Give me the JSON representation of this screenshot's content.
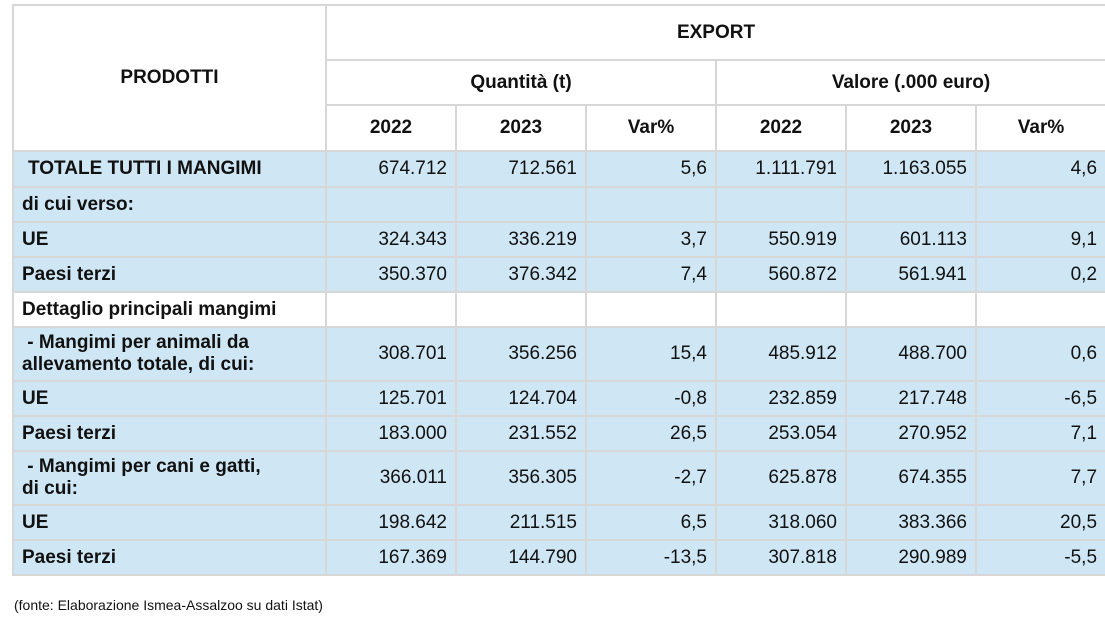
{
  "header": {
    "prodotti": "PRODOTTI",
    "export": "EXPORT",
    "quantita": "Quantità (t)",
    "valore": "Valore (.000 euro)",
    "years": [
      "2022",
      "2023",
      "Var%",
      "2022",
      "2023",
      "Var%"
    ]
  },
  "rows": [
    {
      "label": "TOTALE TUTTI I MANGIMI",
      "values": [
        "674.712",
        "712.561",
        "5,6",
        "1.111.791",
        "1.163.055",
        "4,6"
      ]
    },
    {
      "label": "di cui verso:",
      "values": [
        "",
        "",
        "",
        "",
        "",
        ""
      ]
    },
    {
      "label": "UE",
      "values": [
        "324.343",
        "336.219",
        "3,7",
        "550.919",
        "601.113",
        "9,1"
      ]
    },
    {
      "label": "Paesi terzi",
      "values": [
        "350.370",
        "376.342",
        "7,4",
        "560.872",
        "561.941",
        "0,2"
      ]
    },
    {
      "label": "Dettaglio principali mangimi",
      "values": [
        "",
        "",
        "",
        "",
        "",
        ""
      ]
    },
    {
      "label_lines": [
        " - Mangimi per animali da",
        "allevamento totale, di cui:"
      ],
      "values": [
        "308.701",
        "356.256",
        "15,4",
        "485.912",
        "488.700",
        "0,6"
      ]
    },
    {
      "label": "UE",
      "values": [
        "125.701",
        "124.704",
        "-0,8",
        "232.859",
        "217.748",
        "-6,5"
      ]
    },
    {
      "label": "Paesi terzi",
      "values": [
        "183.000",
        "231.552",
        "26,5",
        "253.054",
        "270.952",
        "7,1"
      ]
    },
    {
      "label_lines": [
        " - Mangimi per cani e gatti,",
        "di cui:"
      ],
      "values": [
        "366.011",
        "356.305",
        "-2,7",
        "625.878",
        "674.355",
        "7,7"
      ]
    },
    {
      "label": "UE",
      "values": [
        "198.642",
        "211.515",
        "6,5",
        "318.060",
        "383.366",
        "20,5"
      ]
    },
    {
      "label": "Paesi terzi",
      "values": [
        "167.369",
        "144.790",
        "-13,5",
        "307.818",
        "290.989",
        "-5,5"
      ]
    }
  ],
  "source": "(fonte: Elaborazione Ismea-Assalzoo su dati Istat)",
  "colors": {
    "row_blue": "#cfe6f4",
    "grid": "#d7d7d7"
  }
}
